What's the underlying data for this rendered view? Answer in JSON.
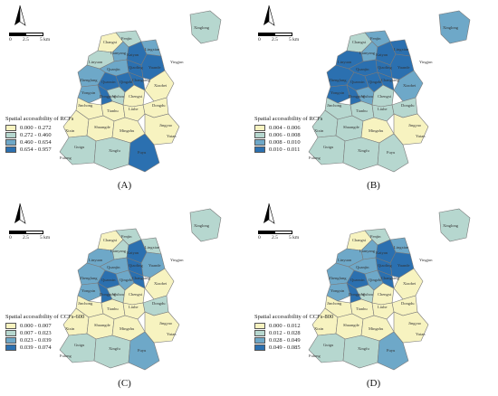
{
  "panels": [
    {
      "id": "a",
      "caption": "(A)",
      "legend_title": "Spatial accessibility of RCFs",
      "classes": [
        "0.000 - 0.272",
        "0.272 - 0.460",
        "0.460 - 0.654",
        "0.654 - 0.957"
      ],
      "colors": [
        "#f7f3c0",
        "#b6d7cf",
        "#6ea8c8",
        "#2b70b0"
      ],
      "region_classes": [
        1,
        0,
        1,
        2,
        3,
        2,
        1,
        2,
        3,
        3,
        2,
        3,
        3,
        3,
        2,
        3,
        1,
        0,
        0,
        0,
        0,
        0,
        0,
        0,
        0,
        0,
        0,
        1,
        1,
        3
      ]
    },
    {
      "id": "b",
      "caption": "(B)",
      "legend_title": "Spatial accessibility of RCFs",
      "classes": [
        "0.004 - 0.006",
        "0.006 - 0.008",
        "0.008 - 0.010",
        "0.010 - 0.011"
      ],
      "colors": [
        "#f7f3c0",
        "#b6d7cf",
        "#6ea8c8",
        "#2b70b0"
      ],
      "region_classes": [
        2,
        1,
        2,
        2,
        3,
        3,
        3,
        3,
        3,
        3,
        3,
        3,
        3,
        3,
        3,
        3,
        2,
        1,
        2,
        1,
        1,
        1,
        1,
        1,
        1,
        0,
        0,
        1,
        1,
        1
      ]
    },
    {
      "id": "c",
      "caption": "(C)",
      "legend_title": "Spatial accessibility of CCFs-600",
      "classes": [
        "0.000 - 0.007",
        "0.007 - 0.023",
        "0.023 - 0.039",
        "0.039 - 0.074"
      ],
      "colors": [
        "#f7f3c0",
        "#b6d7cf",
        "#6ea8c8",
        "#2b70b0"
      ],
      "region_classes": [
        1,
        0,
        1,
        1,
        3,
        1,
        2,
        2,
        3,
        2,
        2,
        3,
        2,
        3,
        2,
        3,
        1,
        0,
        0,
        1,
        0,
        0,
        0,
        0,
        0,
        0,
        0,
        1,
        1,
        2
      ]
    },
    {
      "id": "d",
      "caption": "(D)",
      "legend_title": "Spatial accessibility of CCFs-800",
      "classes": [
        "0.000 - 0.012",
        "0.012 - 0.028",
        "0.028 - 0.049",
        "0.049 - 0.085"
      ],
      "colors": [
        "#f7f3c0",
        "#b6d7cf",
        "#6ea8c8",
        "#2b70b0"
      ],
      "region_classes": [
        1,
        0,
        1,
        2,
        3,
        2,
        2,
        2,
        3,
        3,
        2,
        3,
        2,
        3,
        2,
        3,
        1,
        0,
        0,
        0,
        0,
        0,
        0,
        0,
        0,
        0,
        0,
        1,
        1,
        2
      ]
    }
  ],
  "map_labels": [
    "Xinglong",
    "Changxi",
    "Fenjin",
    "Lianyang",
    "Kaiyan",
    "Lingxian",
    "Xiaodan",
    "Yingjun",
    "Linyuan",
    "Quanjin",
    "Qiaoling",
    "Yuande",
    "Qingzhi",
    "Zhengfang",
    "Quanxin",
    "Changxing",
    "Yongxin",
    "Dongping",
    "Wuhou",
    "Chengxi",
    "Xiaobei",
    "Baisuo",
    "Dongdu",
    "Wujin",
    "Wenguan",
    "Liuhe",
    "Jinsheng",
    "Jinchong",
    "Tianhu",
    "Nanlu",
    "Longtou",
    "Fengcheng",
    "Xixin",
    "Shuangde",
    "Mingzhu",
    "Jingyao",
    "Guigu",
    "Fuyu",
    "Xinsi",
    "Yongxing",
    "Yutan",
    "Fulong",
    "Xingfu"
  ],
  "scale": {
    "labels": [
      "0",
      "2.5",
      "5 km"
    ]
  },
  "north_label": "N"
}
